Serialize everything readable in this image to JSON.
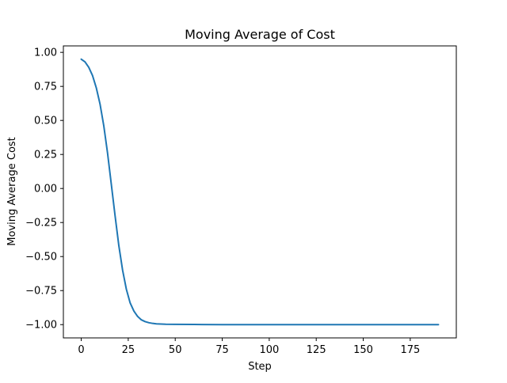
{
  "chart_data": {
    "type": "line",
    "title": "Moving Average of Cost",
    "xlabel": "Step",
    "ylabel": "Moving Average Cost",
    "xlim": [
      -9.5,
      199.5
    ],
    "ylim": [
      -1.0975,
      1.0475
    ],
    "grid": false,
    "x_ticks": [
      0,
      25,
      50,
      75,
      100,
      125,
      150,
      175
    ],
    "y_ticks": [
      1.0,
      0.75,
      0.5,
      0.25,
      0.0,
      -0.25,
      -0.5,
      -0.75,
      -1.0
    ],
    "x_tick_labels": [
      "0",
      "25",
      "50",
      "75",
      "100",
      "125",
      "150",
      "175"
    ],
    "y_tick_labels": [
      "1.00",
      "0.75",
      "0.50",
      "0.25",
      "0.00",
      "−0.25",
      "−0.50",
      "−0.75",
      "−1.00"
    ],
    "series": [
      {
        "color": "#1f77b4",
        "x": [
          0,
          2,
          4,
          6,
          8,
          10,
          12,
          14,
          16,
          18,
          20,
          22,
          24,
          26,
          28,
          30,
          32,
          34,
          36,
          38,
          40,
          45,
          50,
          60,
          75,
          100,
          125,
          150,
          175,
          190
        ],
        "y": [
          0.95,
          0.93,
          0.89,
          0.83,
          0.74,
          0.62,
          0.46,
          0.26,
          0.03,
          -0.2,
          -0.42,
          -0.6,
          -0.74,
          -0.84,
          -0.9,
          -0.94,
          -0.965,
          -0.978,
          -0.986,
          -0.991,
          -0.994,
          -0.997,
          -0.998,
          -0.999,
          -1.0,
          -1.0,
          -1.0,
          -1.0,
          -1.0,
          -1.0
        ]
      }
    ]
  }
}
